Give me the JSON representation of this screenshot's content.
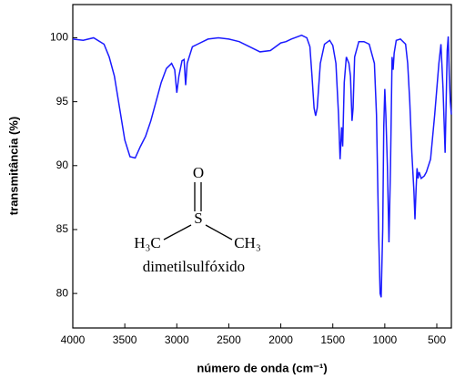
{
  "chart_data": {
    "type": "line",
    "x_label": "número de onda (cm⁻¹)",
    "y_label": "transmitância (%)",
    "xlim": [
      4000,
      360
    ],
    "ylim": [
      77.3,
      102.6
    ],
    "xticks": [
      4000,
      3500,
      3000,
      2500,
      2000,
      1500,
      1000,
      500
    ],
    "yticks": [
      80,
      85,
      90,
      95,
      100
    ],
    "x": [
      4000,
      3900,
      3800,
      3700,
      3650,
      3600,
      3550,
      3500,
      3450,
      3400,
      3350,
      3300,
      3250,
      3200,
      3150,
      3100,
      3050,
      3020,
      3000,
      2980,
      2950,
      2930,
      2915,
      2900,
      2850,
      2800,
      2700,
      2600,
      2500,
      2400,
      2300,
      2200,
      2100,
      2000,
      1950,
      1900,
      1800,
      1750,
      1720,
      1700,
      1680,
      1665,
      1650,
      1620,
      1580,
      1530,
      1500,
      1470,
      1445,
      1430,
      1415,
      1405,
      1390,
      1370,
      1345,
      1330,
      1315,
      1305,
      1290,
      1250,
      1200,
      1150,
      1100,
      1080,
      1060,
      1045,
      1035,
      1020,
      1010,
      1000,
      990,
      975,
      960,
      945,
      930,
      920,
      910,
      890,
      850,
      800,
      780,
      760,
      740,
      720,
      710,
      700,
      690,
      680,
      670,
      650,
      620,
      600,
      560,
      520,
      480,
      460,
      440,
      420,
      410,
      400,
      390,
      380,
      370,
      360
    ],
    "series": [
      {
        "name": "dimetilsulfóxido",
        "color": "#1a1aff",
        "values": [
          99.9,
          99.8,
          100,
          99.5,
          98.5,
          97,
          94.5,
          92,
          90.7,
          90.6,
          91.5,
          92.3,
          93.5,
          95,
          96.5,
          97.6,
          98,
          97.5,
          95.7,
          97,
          98.2,
          98.3,
          96.3,
          98,
          99.3,
          99.5,
          99.9,
          100,
          99.9,
          99.7,
          99.3,
          98.9,
          99,
          99.6,
          99.7,
          99.9,
          100.2,
          100,
          99.3,
          97,
          94.5,
          93.9,
          94.5,
          98,
          99.5,
          99.8,
          99.4,
          98,
          94,
          90.5,
          93,
          91.5,
          96.5,
          98.5,
          98,
          97,
          93.5,
          94.5,
          98.5,
          99.7,
          99.7,
          99.5,
          98,
          94,
          85,
          80,
          79.7,
          85,
          93,
          96,
          94,
          90,
          84,
          90,
          98.5,
          97.5,
          98.8,
          99.8,
          99.9,
          99.5,
          98,
          95,
          91,
          88,
          85.8,
          88,
          89.8,
          89,
          89.5,
          89,
          89.2,
          89.5,
          90.5,
          94,
          98,
          99.5,
          96,
          91,
          95,
          99,
          100.1,
          97,
          95,
          94
        ]
      }
    ],
    "structure": {
      "oxygen": "O",
      "sulfur": "S",
      "left_methyl": "H₃C",
      "right_methyl": "CH₃"
    }
  }
}
